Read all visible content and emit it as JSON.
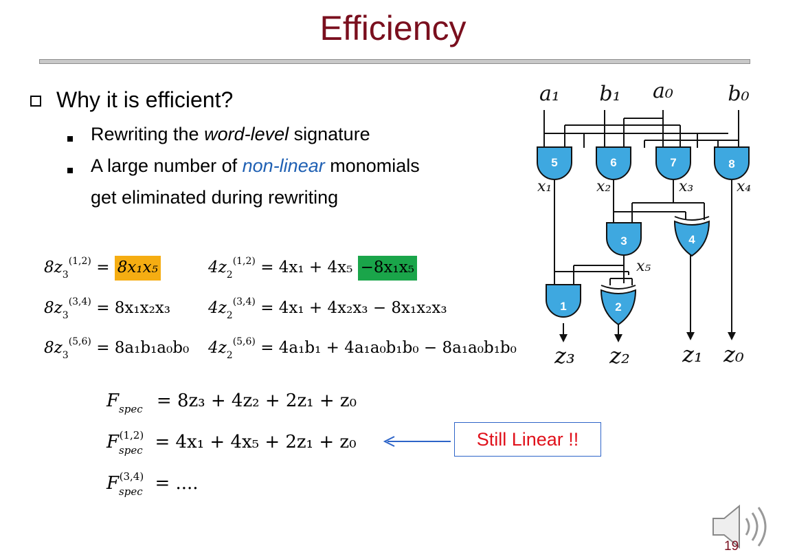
{
  "title": "Efficiency",
  "question": "Why it is efficient?",
  "bullets": [
    {
      "pre": "Rewriting the ",
      "em": "word-level",
      "post": " signature"
    },
    {
      "pre": "A large number of ",
      "em": "non-linear",
      "post": " monomials",
      "line2": "get eliminated during rewriting"
    }
  ],
  "eq": {
    "z3": "8z",
    "z2": "4z",
    "sub3": "3",
    "sub2": "2",
    "sup12": "(1,2)",
    "sup34": "(3,4)",
    "sup56": "(5,6)",
    "rhs_z3_12": "8x₁x₅",
    "rhs_z3_34": "= 8x₁x₂x₃",
    "rhs_z3_56": "= 8a₁b₁a₀b₀",
    "rhs_z2_12_a": "= 4x₁ + 4x₅",
    "rhs_z2_12_b": "−8x₁x₅",
    "rhs_z2_34": "= 4x₁ + 4x₂x₃ − 8x₁x₂x₃",
    "rhs_z2_56": "= 4a₁b₁ + 4a₁a₀b₁b₀ − 8a₁a₀b₁b₀"
  },
  "fspec": {
    "F": "F",
    "spec": "spec",
    "line1": "= 8z₃ + 4z₂ + 2z₁ + z₀",
    "line2": "= 4x₁ + 4x₅ + 2z₁ + z₀",
    "line3": "= ....",
    "sup12": "(1,2)",
    "sup34": "(3,4)"
  },
  "callout": "Still Linear !!",
  "circuit": {
    "inputs": [
      "a₁",
      "b₁",
      "a₀",
      "b₀"
    ],
    "gates": [
      "5",
      "6",
      "7",
      "8",
      "3",
      "4",
      "1",
      "2"
    ],
    "wires": [
      "x₁",
      "x₂",
      "x₃",
      "x₄",
      "x₅"
    ],
    "outputs": [
      "z₃",
      "z₂",
      "z₁",
      "z₀"
    ]
  },
  "colors": {
    "title": "#7a0f1e",
    "gate": "#3ea8e0",
    "callout_text": "#e0111b",
    "arrow": "#2d64c8",
    "orange": "#f5ad12",
    "green": "#1aa54a"
  },
  "icons": [
    "speaker-icon"
  ],
  "page_number": "19"
}
